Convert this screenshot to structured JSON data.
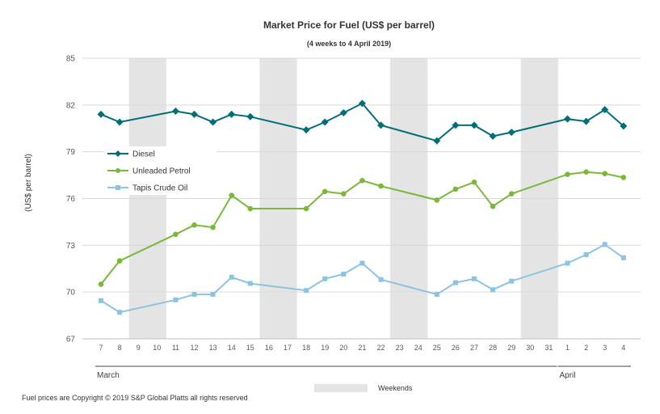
{
  "chart_data": {
    "type": "line",
    "title": "Market Price for Fuel (US$ per barrel)",
    "subtitle": "(4 weeks to 4 April 2019)",
    "ylabel": "(US$ per barrel)",
    "ylim": [
      67,
      85
    ],
    "yticks": [
      67,
      70,
      73,
      76,
      79,
      82,
      85
    ],
    "grid": true,
    "legend_position": "upper-left",
    "x": [
      "7",
      "8",
      "9",
      "10",
      "11",
      "12",
      "13",
      "14",
      "15",
      "16",
      "17",
      "18",
      "19",
      "20",
      "21",
      "22",
      "23",
      "24",
      "25",
      "26",
      "27",
      "28",
      "29",
      "30",
      "31",
      "1",
      "2",
      "3",
      "4"
    ],
    "months": [
      {
        "label": "March",
        "start_index": 0,
        "end_index": 24
      },
      {
        "label": "April",
        "start_index": 25,
        "end_index": 28
      }
    ],
    "weekend_index_pairs": [
      [
        2,
        3
      ],
      [
        9,
        10
      ],
      [
        16,
        17
      ],
      [
        23,
        24
      ]
    ],
    "weekend_label": "Weekends",
    "series": [
      {
        "name": "Diesel",
        "color": "#006E78",
        "marker": "diamond",
        "values": [
          81.4,
          80.9,
          null,
          null,
          81.6,
          81.4,
          80.9,
          81.4,
          81.25,
          null,
          null,
          80.4,
          80.9,
          81.5,
          82.1,
          80.7,
          null,
          null,
          79.7,
          80.7,
          80.7,
          80.0,
          80.25,
          null,
          null,
          81.1,
          80.95,
          81.7,
          80.65
        ]
      },
      {
        "name": "Unleaded Petrol",
        "color": "#7AB83A",
        "marker": "circle",
        "values": [
          70.5,
          72.0,
          null,
          null,
          73.7,
          74.3,
          74.15,
          76.2,
          75.35,
          null,
          null,
          75.35,
          76.45,
          76.3,
          77.15,
          76.8,
          null,
          null,
          75.9,
          76.6,
          77.05,
          75.5,
          76.3,
          null,
          null,
          77.55,
          77.7,
          77.6,
          77.35
        ]
      },
      {
        "name": "Tapis Crude Oil",
        "color": "#8DC3E0",
        "marker": "square",
        "values": [
          69.45,
          68.7,
          null,
          null,
          69.5,
          69.85,
          69.85,
          70.95,
          70.55,
          null,
          null,
          70.1,
          70.85,
          71.15,
          71.85,
          70.8,
          null,
          null,
          69.85,
          70.6,
          70.85,
          70.15,
          70.7,
          null,
          null,
          71.85,
          72.4,
          73.05,
          72.2
        ]
      }
    ]
  },
  "footer": {
    "copyright": "Fuel prices are Copyright © 2019 S&P Global Platts all rights reserved"
  }
}
